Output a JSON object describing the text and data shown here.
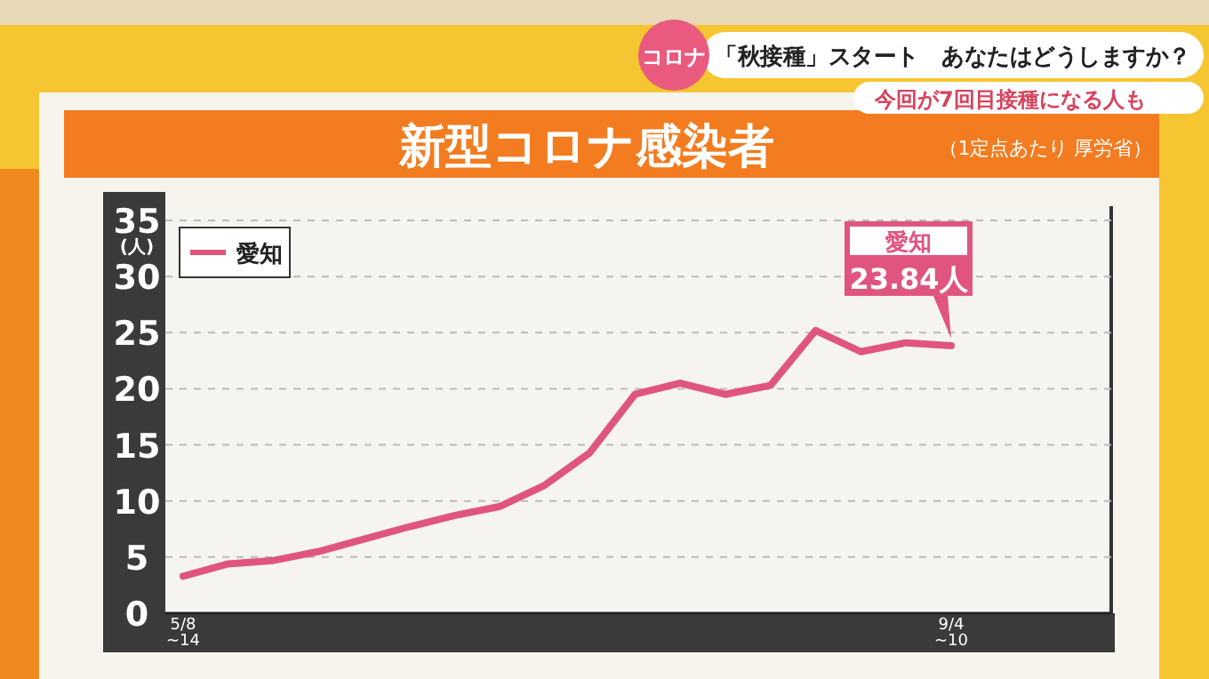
{
  "chart_data": {
    "type": "line",
    "title": "新型コロナ感染者",
    "subtitle": "（1定点あたり 厚労省）",
    "ylabel": "(人)",
    "categories": [
      "5/8\n~14",
      null,
      null,
      null,
      null,
      null,
      null,
      null,
      null,
      null,
      null,
      null,
      null,
      null,
      null,
      null,
      null,
      "9/4\n~10"
    ],
    "series": [
      {
        "name": "愛知",
        "color": "#e0557f",
        "values": [
          3.3,
          4.4,
          4.7,
          5.5,
          6.6,
          7.7,
          8.7,
          9.5,
          11.4,
          14.3,
          19.5,
          20.5,
          19.5,
          20.3,
          25.2,
          23.3,
          24.1,
          23.84
        ]
      }
    ],
    "ylim": [
      0,
      35
    ],
    "yticks": [
      0,
      5,
      10,
      15,
      20,
      25,
      30,
      35
    ],
    "grid": "y",
    "line_style": "solid",
    "marker": "none",
    "legend": "top left",
    "annotations": [
      {
        "text": "愛知\n23.84人",
        "x": "9/4\n~10",
        "y": 23.84
      },
      "コロナ",
      "「秋接種」スタート　あなたはどうしますか？",
      "今回が7回目接種になる人も"
    ]
  }
}
